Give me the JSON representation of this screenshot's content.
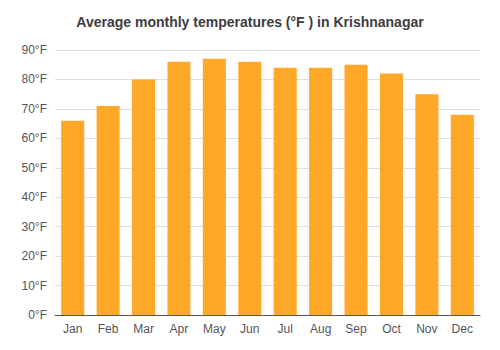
{
  "chart_data": {
    "type": "bar",
    "title": "Average monthly temperatures (°F ) in Krishnanagar",
    "categories": [
      "Jan",
      "Feb",
      "Mar",
      "Apr",
      "May",
      "Jun",
      "Jul",
      "Aug",
      "Sep",
      "Oct",
      "Nov",
      "Dec"
    ],
    "values": [
      66,
      71,
      80,
      86,
      87,
      86,
      84,
      84,
      85,
      82,
      75,
      68
    ],
    "color": "#FFA726",
    "ylim": [
      0,
      90
    ],
    "yticks": [
      {
        "value": 0,
        "label": "0°F"
      },
      {
        "value": 10,
        "label": "10°F"
      },
      {
        "value": 20,
        "label": "20°F"
      },
      {
        "value": 30,
        "label": "30°F"
      },
      {
        "value": 40,
        "label": "40°F"
      },
      {
        "value": 50,
        "label": "50°F"
      },
      {
        "value": 60,
        "label": "60°F"
      },
      {
        "value": 70,
        "label": "70°F"
      },
      {
        "value": 80,
        "label": "80°F"
      },
      {
        "value": 90,
        "label": "90°F"
      }
    ],
    "grid": true
  }
}
